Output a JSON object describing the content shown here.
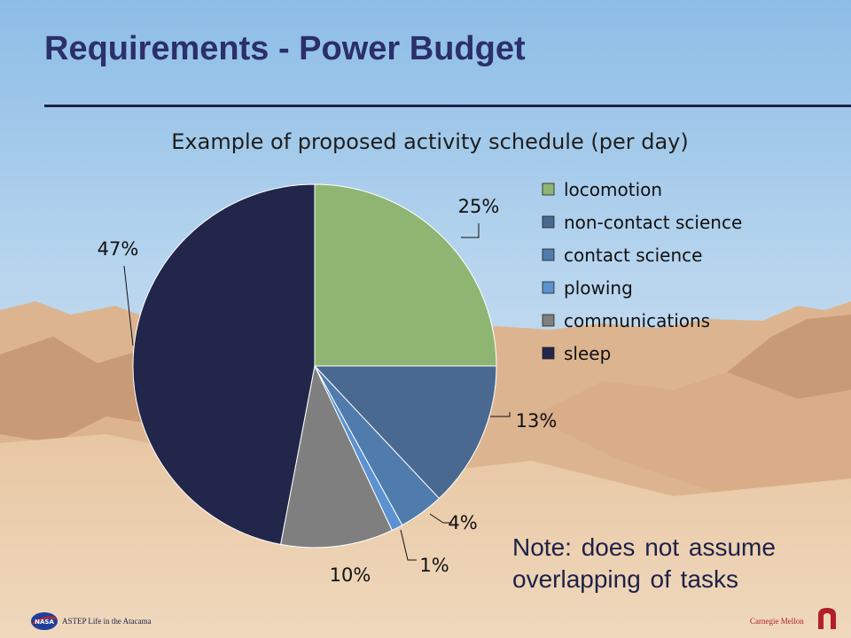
{
  "slide": {
    "title": "Requirements - Power Budget",
    "note": "Note: does not assume overlapping of tasks",
    "footer_left": "ASTEP Life in the Atacama",
    "footer_right": "Carnegie Mellon",
    "logos": {
      "left": "nasa-logo-icon",
      "right": "cmu-logo-icon"
    }
  },
  "colors": {
    "title": "#2b2f6b",
    "rule": "#1e2147",
    "sky": "#a9cbe8",
    "desert": "#e6c6a2"
  },
  "chart_data": {
    "type": "pie",
    "title": "Example of proposed activity schedule (per day)",
    "legend_position": "right",
    "slices": [
      {
        "label": "locomotion",
        "value": 25,
        "display": "25%",
        "color": "#8fb573"
      },
      {
        "label": "non-contact science",
        "value": 13,
        "display": "13%",
        "color": "#4a6990"
      },
      {
        "label": "contact science",
        "value": 4,
        "display": "4%",
        "color": "#4f7cad"
      },
      {
        "label": "plowing",
        "value": 1,
        "display": "1%",
        "color": "#5b92cf"
      },
      {
        "label": "communications",
        "value": 10,
        "display": "10%",
        "color": "#7f7f7f"
      },
      {
        "label": "sleep",
        "value": 47,
        "display": "47%",
        "color": "#22264a"
      }
    ]
  }
}
